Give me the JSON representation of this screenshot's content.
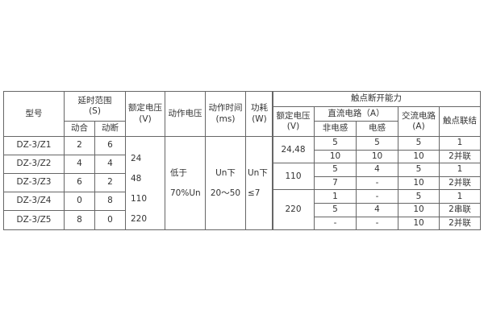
{
  "headers": {
    "model": "型号",
    "delay_range": "延时范围",
    "delay_unit": "(S)",
    "close": "动合",
    "open": "动断",
    "rated_voltage": "额定电压",
    "rated_voltage_unit": "(V)",
    "operate_voltage": "动作电压",
    "operate_time": "动作时间",
    "operate_time_unit": "(ms)",
    "power": "功耗",
    "power_unit": "(W)",
    "breaking_capacity": "触点断开能力",
    "contact_rated_voltage": "额定电压",
    "contact_rated_voltage_unit": "(V)",
    "dc_circuit": "直流电路（A）",
    "non_inductive": "非电感",
    "inductive": "电感",
    "ac_circuit": "交流电路",
    "ac_unit": "(A)",
    "contact_connection": "触点联结"
  },
  "models": [
    {
      "model": "DZ-3/Z1",
      "close": "2",
      "open": "6"
    },
    {
      "model": "DZ-3/Z2",
      "close": "4",
      "open": "4"
    },
    {
      "model": "DZ-3/Z3",
      "close": "6",
      "open": "2"
    },
    {
      "model": "DZ-3/Z4",
      "close": "0",
      "open": "8"
    },
    {
      "model": "DZ-3/Z5",
      "close": "8",
      "open": "0"
    }
  ],
  "rated_voltages": [
    "24",
    "48",
    "110",
    "220"
  ],
  "operate_voltage": [
    "低于",
    "70%Un"
  ],
  "operate_time": [
    "Un下",
    "20～50"
  ],
  "power": [
    "Un下",
    "≤7"
  ],
  "contact_groups": [
    {
      "voltage": "24,48",
      "rows": [
        [
          "5",
          "5",
          "5",
          "1"
        ],
        [
          "10",
          "10",
          "10",
          "2并联"
        ]
      ]
    },
    {
      "voltage": "110",
      "rows": [
        [
          "5",
          "4",
          "5",
          "1"
        ],
        [
          "7",
          "-",
          "10",
          "2并联"
        ]
      ]
    },
    {
      "voltage": "220",
      "rows": [
        [
          "1",
          "-",
          "5",
          "1"
        ],
        [
          "5",
          "4",
          "10",
          "2串联"
        ],
        [
          "-",
          "-",
          "10",
          "2并联"
        ]
      ]
    }
  ]
}
